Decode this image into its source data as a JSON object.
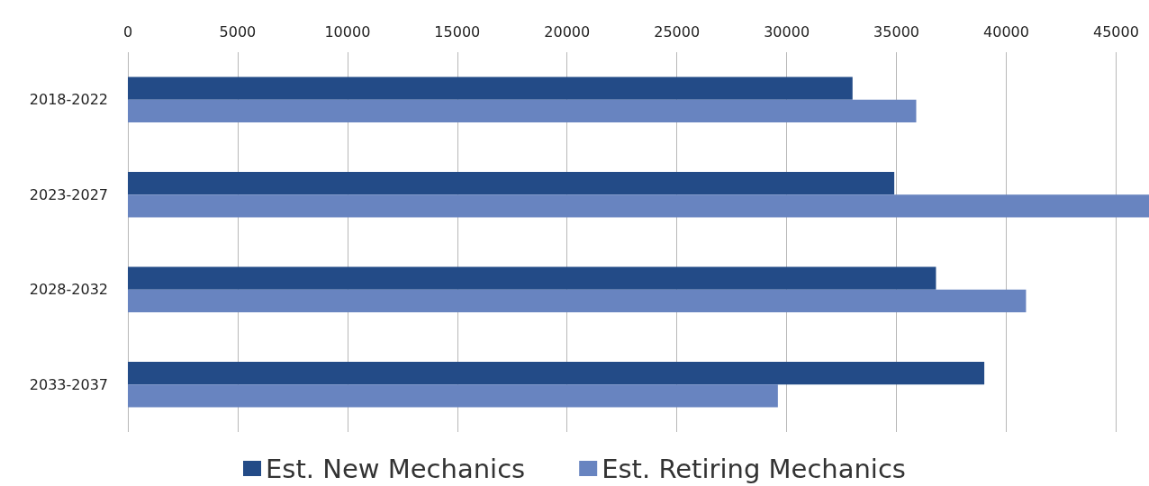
{
  "chart_data": {
    "type": "bar",
    "orientation": "horizontal",
    "categories": [
      "2018-2022",
      "2023-2027",
      "2028-2032",
      "2033-2037"
    ],
    "series": [
      {
        "name": "Est. New Mechanics",
        "color": "#234b87",
        "values": [
          33000,
          34900,
          36800,
          39000
        ]
      },
      {
        "name": "Est. Retiring Mechanics",
        "color": "#6884c0",
        "values": [
          35900,
          46500,
          40900,
          29600
        ]
      }
    ],
    "xlim": [
      0,
      46500
    ],
    "xticks": [
      0,
      5000,
      10000,
      15000,
      20000,
      25000,
      30000,
      35000,
      40000,
      45000
    ],
    "grid": "x",
    "legend": "bottom"
  }
}
